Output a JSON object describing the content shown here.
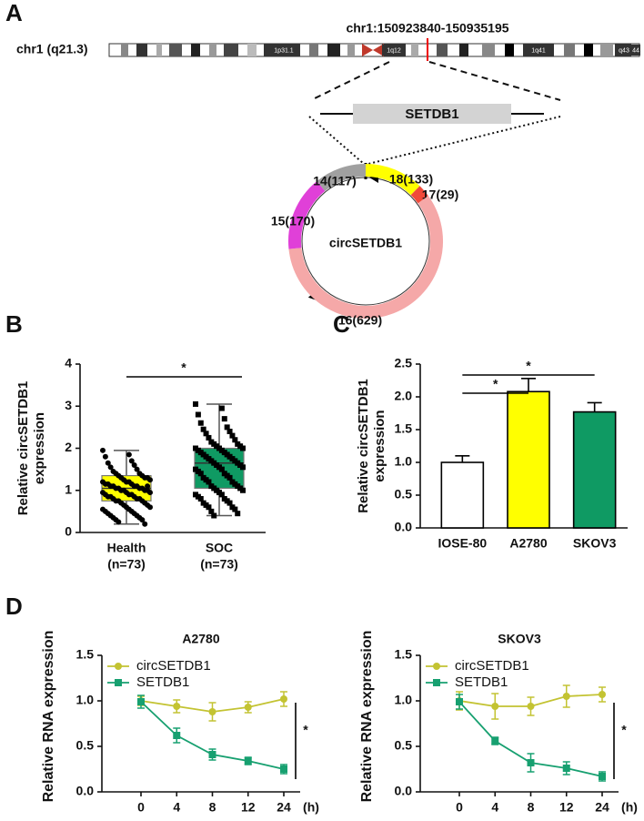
{
  "diagram": {
    "label": "A",
    "chrom_label": "chr1 (q21.3)",
    "locus": "chr1:150923840-150935195",
    "band_labels": [
      "1p31.1",
      "1q12",
      "1q41",
      "q43",
      "44"
    ],
    "gene": "SETDB1",
    "circ_name": "circSETDB1",
    "exons": [
      {
        "label": "18(133)",
        "length": 133,
        "color": "#ffff00"
      },
      {
        "label": "17(29)",
        "length": 29,
        "color": "#f04a3a"
      },
      {
        "label": "16(629)",
        "length": 629,
        "color": "#f5a8a8"
      },
      {
        "label": "15(170)",
        "length": 170,
        "color": "#e040d8"
      },
      {
        "label": "14(117)",
        "length": 117,
        "color": "#a0a0a0"
      }
    ]
  },
  "chart_data": [
    {
      "type": "box",
      "label": "B",
      "ylabel": [
        "Relative circSETDB1",
        "expression"
      ],
      "categories": [
        "Health",
        "SOC"
      ],
      "category_notes": [
        "(n=73)",
        "(n=73)"
      ],
      "colors": [
        "#ffff00",
        "#0f9a63"
      ],
      "markers": [
        "circle",
        "square"
      ],
      "boxes": [
        {
          "min": 0.2,
          "q1": 0.75,
          "median": 1.05,
          "q3": 1.35,
          "max": 1.95
        },
        {
          "min": 0.4,
          "q1": 1.05,
          "median": 1.65,
          "q3": 2.0,
          "max": 3.05
        }
      ],
      "points": [
        [
          1.95,
          1.85,
          1.8,
          1.7,
          1.65,
          1.6,
          1.55,
          1.5,
          1.45,
          1.4,
          1.4,
          1.35,
          1.35,
          1.3,
          1.3,
          1.3,
          1.25,
          1.25,
          1.2,
          1.2,
          1.2,
          1.15,
          1.15,
          1.15,
          1.1,
          1.1,
          1.1,
          1.1,
          1.05,
          1.05,
          1.05,
          1.05,
          1.0,
          1.0,
          1.0,
          1.0,
          0.95,
          0.95,
          0.95,
          0.9,
          0.9,
          0.9,
          0.85,
          0.85,
          0.85,
          0.8,
          0.8,
          0.8,
          0.75,
          0.75,
          0.75,
          0.7,
          0.7,
          0.65,
          0.65,
          0.6,
          0.6,
          0.55,
          0.55,
          0.5,
          0.5,
          0.45,
          0.45,
          0.4,
          0.4,
          0.35,
          0.35,
          0.3,
          0.3,
          0.25,
          0.2,
          1.0,
          1.1
        ],
        [
          3.05,
          2.95,
          2.8,
          2.7,
          2.6,
          2.5,
          2.45,
          2.4,
          2.35,
          2.3,
          2.25,
          2.2,
          2.15,
          2.1,
          2.1,
          2.05,
          2.05,
          2.0,
          2.0,
          2.0,
          1.95,
          1.95,
          1.9,
          1.9,
          1.85,
          1.85,
          1.8,
          1.8,
          1.75,
          1.75,
          1.7,
          1.7,
          1.65,
          1.65,
          1.6,
          1.6,
          1.55,
          1.55,
          1.5,
          1.5,
          1.45,
          1.4,
          1.4,
          1.35,
          1.3,
          1.3,
          1.25,
          1.2,
          1.2,
          1.15,
          1.1,
          1.1,
          1.05,
          1.05,
          1.0,
          1.0,
          0.95,
          0.9,
          0.9,
          0.85,
          0.8,
          0.8,
          0.75,
          0.7,
          0.7,
          0.65,
          0.6,
          0.6,
          0.55,
          0.5,
          0.45,
          0.4,
          1.6
        ]
      ],
      "ylim": [
        0,
        4
      ],
      "yticks": [
        0,
        1,
        2,
        3,
        4
      ],
      "annotations": [
        "*"
      ]
    },
    {
      "type": "bar",
      "label": "C",
      "ylabel": [
        "Relative circSETDB1",
        "expression"
      ],
      "categories": [
        "IOSE-80",
        "A2780",
        "SKOV3"
      ],
      "values": [
        1.0,
        2.08,
        1.77
      ],
      "errors": [
        0.1,
        0.2,
        0.14
      ],
      "colors": [
        "#ffffff",
        "#ffff00",
        "#0f9a63"
      ],
      "ylim": [
        0,
        2.5
      ],
      "yticks": [
        {
          "value": 0,
          "label": "0.0"
        },
        0.5,
        {
          "value": 1,
          "label": "1.0"
        },
        1.5,
        {
          "value": 2,
          "label": "2.0"
        },
        2.5
      ],
      "annotations": [
        "*",
        "*"
      ]
    },
    {
      "type": "line",
      "label": "D",
      "title": "A2780",
      "ylabel": "Relative RNA expression",
      "categories": [
        "0",
        "4",
        "8",
        "12",
        "24"
      ],
      "x_unit": "(h)",
      "series": [
        {
          "name": "circSETDB1",
          "color": "#c3c332",
          "marker": "circle",
          "values": [
            1.0,
            0.94,
            0.88,
            0.93,
            1.02
          ],
          "errors": [
            0.05,
            0.07,
            0.1,
            0.06,
            0.08
          ]
        },
        {
          "name": "SETDB1",
          "color": "#17a070",
          "marker": "square",
          "values": [
            0.99,
            0.62,
            0.41,
            0.34,
            0.25
          ],
          "errors": [
            0.07,
            0.08,
            0.06,
            0.04,
            0.05
          ]
        }
      ],
      "ylim": [
        0,
        1.5
      ],
      "yticks": [
        {
          "value": 0,
          "label": "0.0"
        },
        0.5,
        {
          "value": 1,
          "label": "1.0"
        },
        1.5
      ],
      "annotations": [
        "*"
      ]
    },
    {
      "type": "line",
      "title": "SKOV3",
      "ylabel": "Relative RNA expression",
      "categories": [
        "0",
        "4",
        "8",
        "12",
        "24"
      ],
      "x_unit": "(h)",
      "series": [
        {
          "name": "circSETDB1",
          "color": "#c3c332",
          "marker": "circle",
          "values": [
            1.0,
            0.94,
            0.94,
            1.05,
            1.07
          ],
          "errors": [
            0.1,
            0.14,
            0.1,
            0.12,
            0.08
          ]
        },
        {
          "name": "SETDB1",
          "color": "#17a070",
          "marker": "square",
          "values": [
            0.99,
            0.56,
            0.32,
            0.26,
            0.17
          ],
          "errors": [
            0.08,
            0.04,
            0.1,
            0.07,
            0.05
          ]
        }
      ],
      "ylim": [
        0,
        1.5
      ],
      "yticks": [
        {
          "value": 0,
          "label": "0.0"
        },
        0.5,
        {
          "value": 1,
          "label": "1.0"
        },
        1.5
      ],
      "annotations": [
        "*"
      ]
    }
  ]
}
